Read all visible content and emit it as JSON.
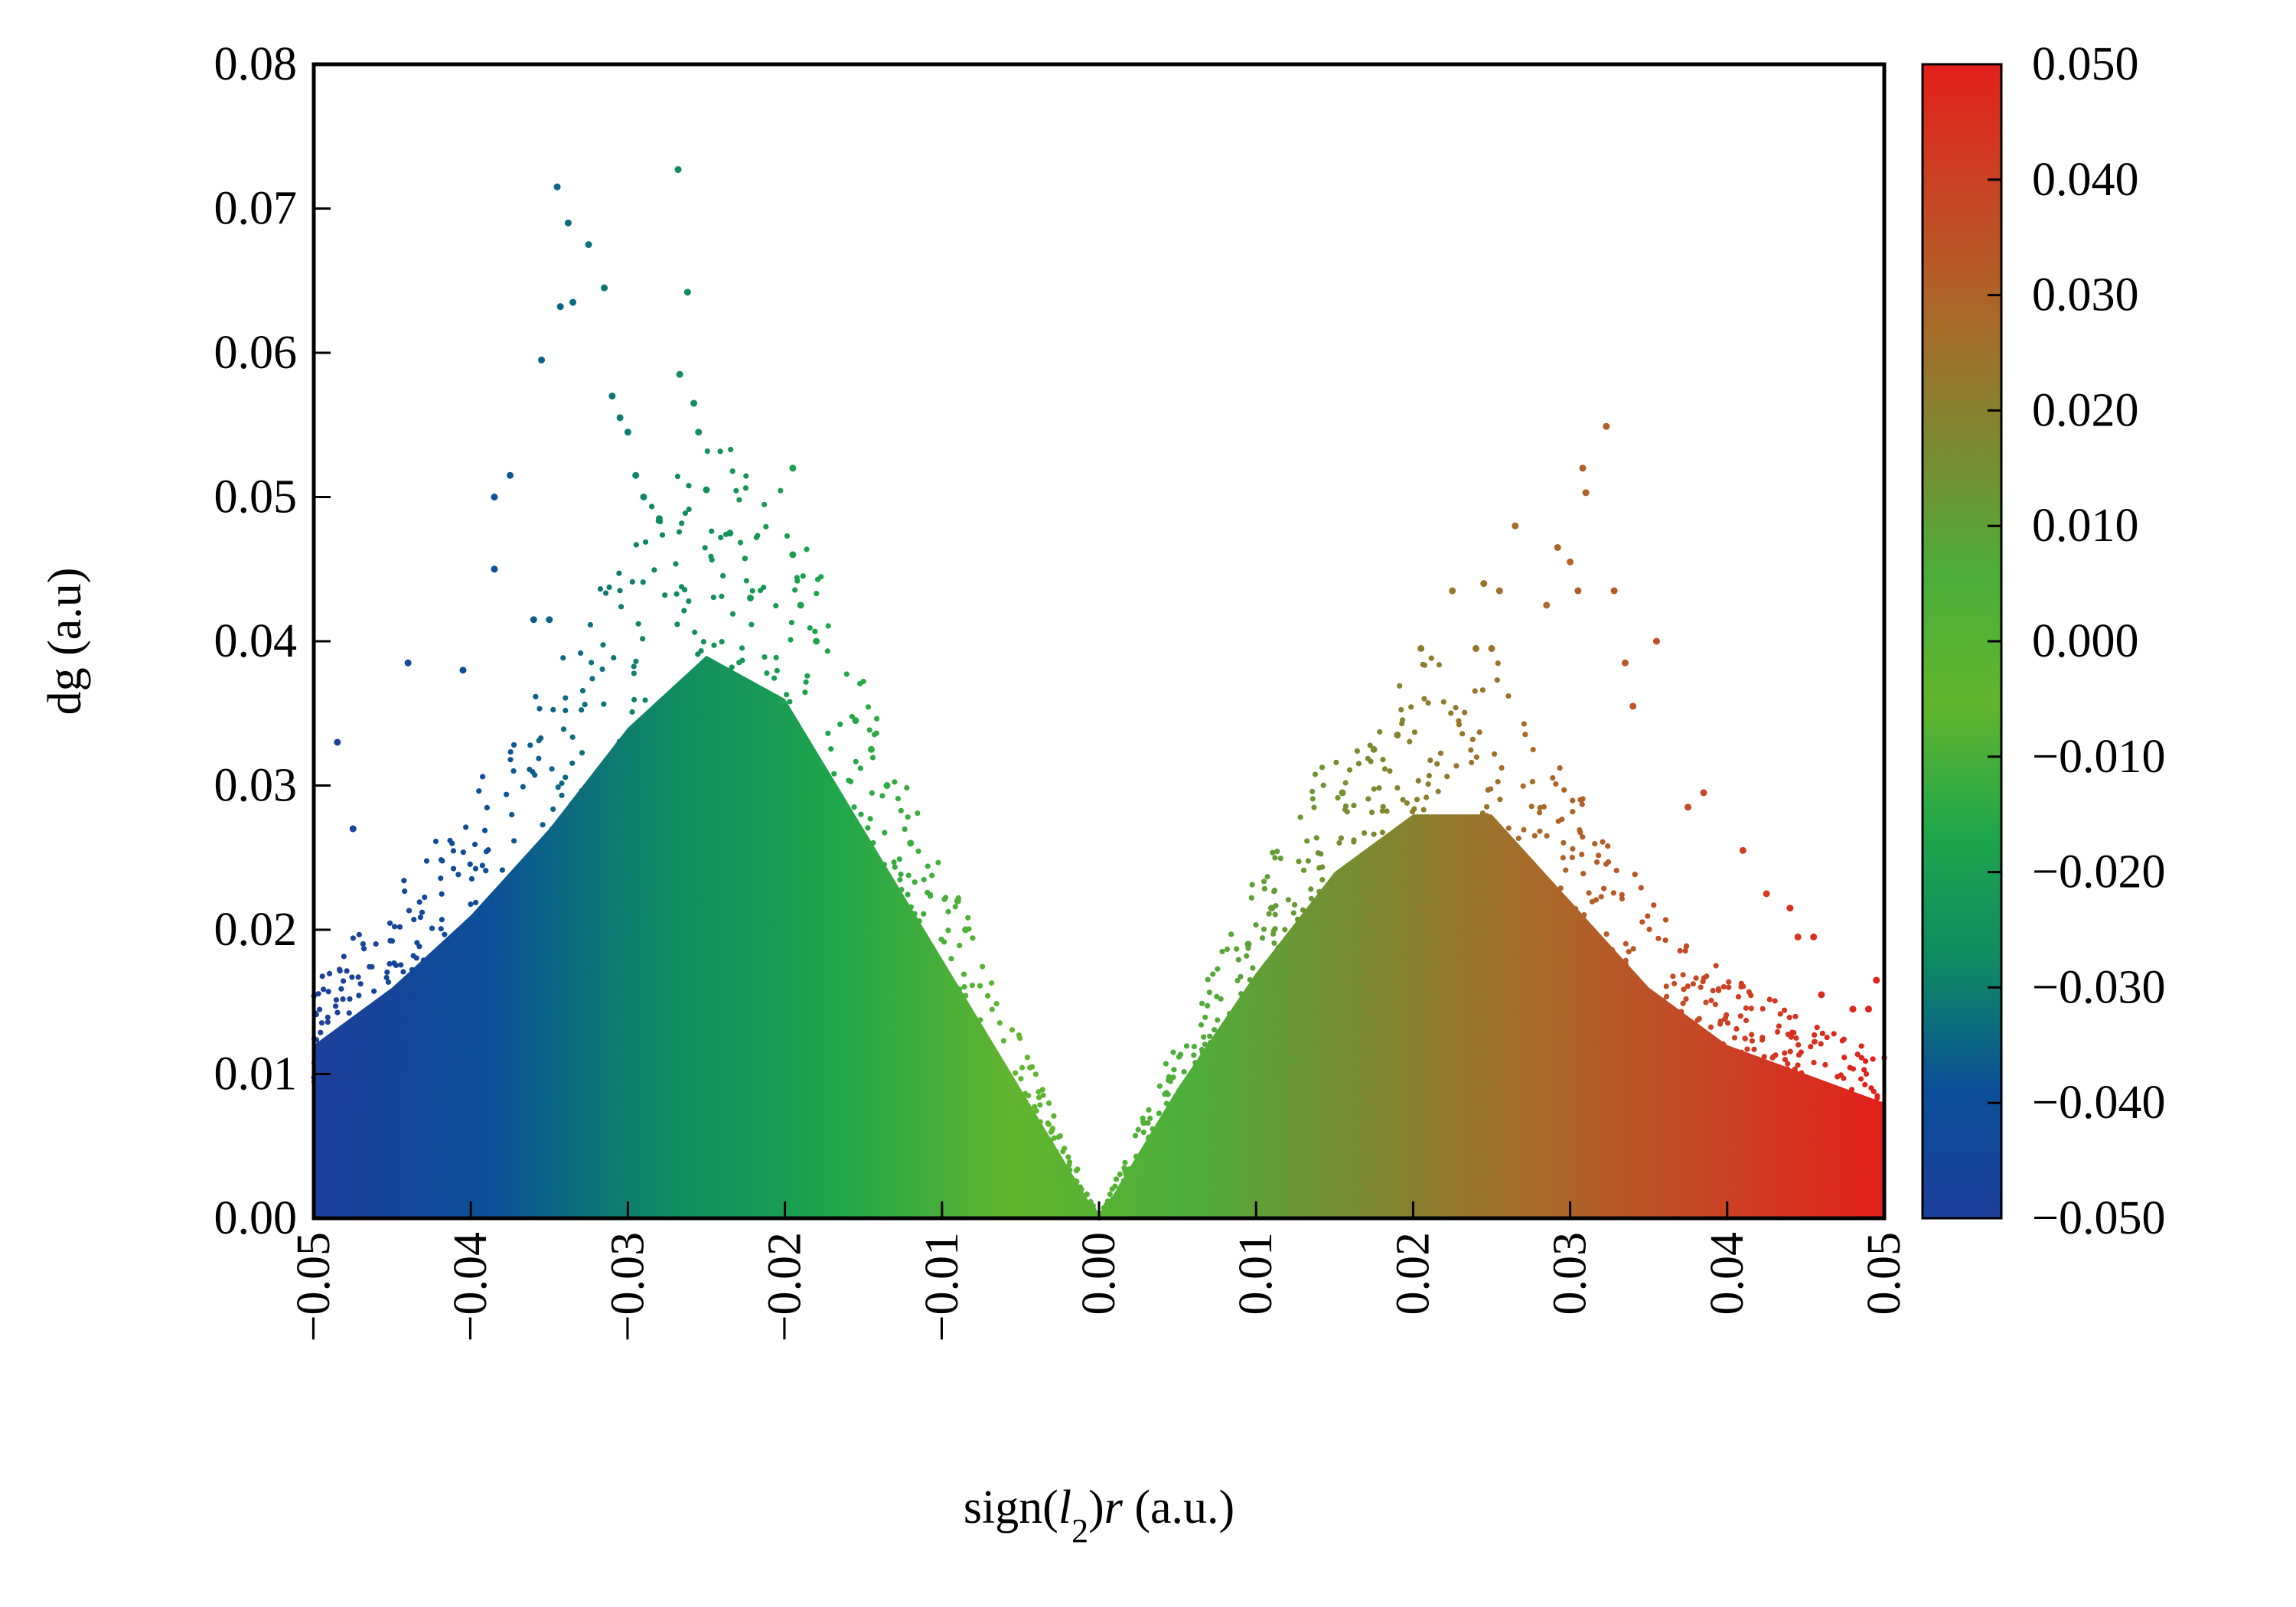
{
  "chart_data": {
    "type": "scatter",
    "title": "",
    "xlabel": {
      "pre": "sign(",
      "l": "l",
      "sub": "2",
      "post": ")",
      "r": "r",
      "units": " (a.u.)"
    },
    "ylabel": "dg (a.u)",
    "xlim": [
      -0.05,
      0.05
    ],
    "ylim": [
      0,
      0.08
    ],
    "x_ticks": [
      "−0.05",
      "−0.04",
      "−0.03",
      "−0.02",
      "−0.01",
      "0.00",
      "0.01",
      "0.02",
      "0.03",
      "0.04",
      "0.05"
    ],
    "y_ticks": [
      "0.00",
      "0.01",
      "0.02",
      "0.03",
      "0.04",
      "0.05",
      "0.06",
      "0.07",
      "0.08"
    ],
    "grid": false,
    "legend": "none",
    "colorbar": {
      "range": [
        -0.05,
        0.05
      ],
      "ticks": [
        "−0.050",
        "−0.040",
        "−0.030",
        "−0.020",
        "−0.010",
        "0.000",
        "0.010",
        "0.020",
        "0.030",
        "0.040",
        "0.050"
      ],
      "colors": [
        "#1e3f9a",
        "#0b4f98",
        "#0f8a63",
        "#1fa64a",
        "#62b52e",
        "#4caf3a",
        "#7a8a30",
        "#a86a28",
        "#c84524",
        "#e31f1b"
      ]
    },
    "series": [
      {
        "envelope": [
          [
            -0.05,
            0.012
          ],
          [
            -0.045,
            0.016
          ],
          [
            -0.04,
            0.021
          ],
          [
            -0.035,
            0.027
          ],
          [
            -0.03,
            0.034
          ],
          [
            -0.025,
            0.039
          ],
          [
            -0.02,
            0.036
          ],
          [
            -0.015,
            0.027
          ],
          [
            -0.01,
            0.018
          ],
          [
            -0.005,
            0.009
          ],
          [
            0.0,
            0.0
          ],
          [
            0.005,
            0.009
          ],
          [
            0.01,
            0.017
          ],
          [
            0.015,
            0.024
          ],
          [
            0.02,
            0.028
          ],
          [
            0.025,
            0.028
          ],
          [
            0.03,
            0.022
          ],
          [
            0.035,
            0.016
          ],
          [
            0.04,
            0.012
          ],
          [
            0.045,
            0.01
          ],
          [
            0.05,
            0.008
          ]
        ],
        "outliers": [
          [
            -0.0485,
            0.033
          ],
          [
            -0.0475,
            0.027
          ],
          [
            -0.044,
            0.0385
          ],
          [
            -0.0405,
            0.038
          ],
          [
            -0.0385,
            0.045
          ],
          [
            -0.0385,
            0.05
          ],
          [
            -0.0375,
            0.0515
          ],
          [
            -0.036,
            0.0415
          ],
          [
            -0.0355,
            0.0595
          ],
          [
            -0.035,
            0.0415
          ],
          [
            -0.0345,
            0.0715
          ],
          [
            -0.0343,
            0.0632
          ],
          [
            -0.0338,
            0.069
          ],
          [
            -0.0335,
            0.0635
          ],
          [
            -0.0325,
            0.0675
          ],
          [
            -0.0315,
            0.0645
          ],
          [
            -0.031,
            0.057
          ],
          [
            -0.0305,
            0.0555
          ],
          [
            -0.03,
            0.0545
          ],
          [
            -0.0295,
            0.0515
          ],
          [
            -0.029,
            0.05
          ],
          [
            -0.028,
            0.0485
          ],
          [
            -0.0268,
            0.0727
          ],
          [
            -0.0267,
            0.0585
          ],
          [
            -0.0262,
            0.0642
          ],
          [
            -0.0258,
            0.0565
          ],
          [
            -0.0255,
            0.0545
          ],
          [
            -0.025,
            0.0505
          ],
          [
            -0.0235,
            0.0475
          ],
          [
            -0.0222,
            0.043
          ],
          [
            -0.0195,
            0.052
          ],
          [
            -0.0195,
            0.046
          ],
          [
            -0.019,
            0.0425
          ],
          [
            -0.018,
            0.04
          ],
          [
            -0.0155,
            0.0345
          ],
          [
            -0.0145,
            0.0325
          ],
          [
            -0.0135,
            0.03
          ],
          [
            -0.012,
            0.026
          ],
          [
            -0.009,
            0.022
          ],
          [
            -0.0085,
            0.02
          ],
          [
            0.0095,
            0.019
          ],
          [
            0.011,
            0.0215
          ],
          [
            0.0155,
            0.0295
          ],
          [
            0.0175,
            0.0325
          ],
          [
            0.019,
            0.0335
          ],
          [
            0.0205,
            0.0395
          ],
          [
            0.0225,
            0.0435
          ],
          [
            0.024,
            0.0395
          ],
          [
            0.025,
            0.0395
          ],
          [
            0.0245,
            0.044
          ],
          [
            0.0255,
            0.0435
          ],
          [
            0.0265,
            0.048
          ],
          [
            0.0285,
            0.0425
          ],
          [
            0.0292,
            0.0465
          ],
          [
            0.03,
            0.0455
          ],
          [
            0.0305,
            0.0435
          ],
          [
            0.0308,
            0.052
          ],
          [
            0.031,
            0.0503
          ],
          [
            0.0323,
            0.0549
          ],
          [
            0.0328,
            0.0435
          ],
          [
            0.0335,
            0.0385
          ],
          [
            0.034,
            0.0355
          ],
          [
            0.0355,
            0.04
          ],
          [
            0.0375,
            0.0285
          ],
          [
            0.0385,
            0.0295
          ],
          [
            0.041,
            0.0255
          ],
          [
            0.0425,
            0.0225
          ],
          [
            0.044,
            0.0215
          ],
          [
            0.0445,
            0.0195
          ],
          [
            0.0455,
            0.0195
          ],
          [
            0.046,
            0.0155
          ],
          [
            0.048,
            0.0145
          ],
          [
            0.0495,
            0.0165
          ],
          [
            0.049,
            0.0145
          ]
        ]
      }
    ]
  }
}
